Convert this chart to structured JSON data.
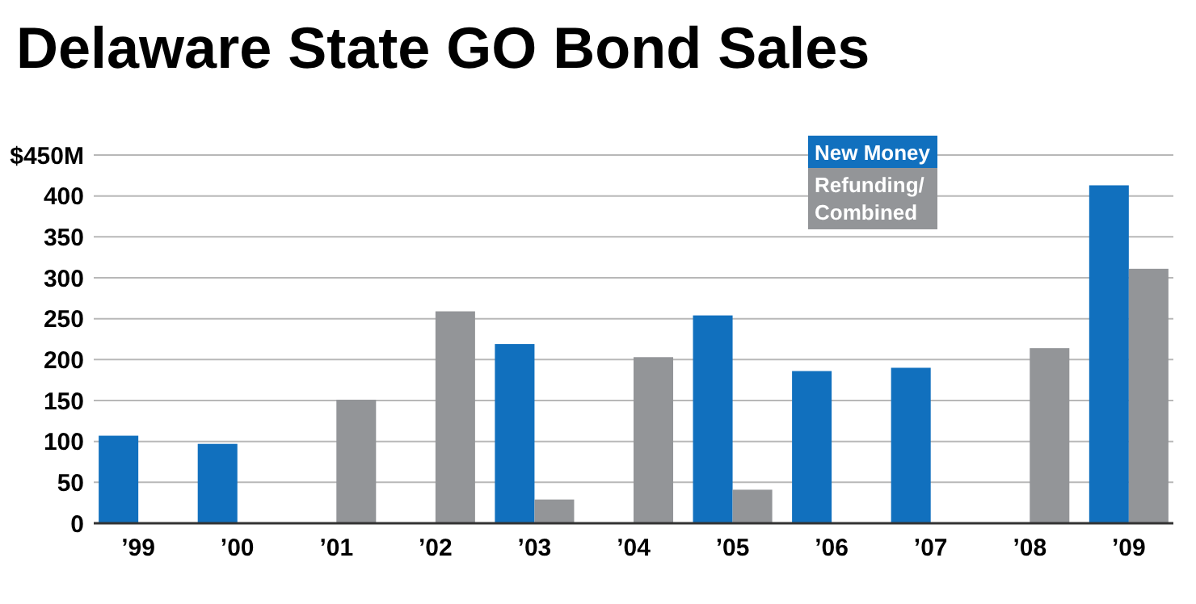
{
  "chart_data": {
    "type": "bar",
    "title": "Delaware State GO Bond Sales",
    "categories": [
      "’99",
      "’00",
      "’01",
      "’02",
      "’03",
      "’04",
      "’05",
      "’06",
      "’07",
      "’08",
      "’09"
    ],
    "series": [
      {
        "name": "New Money",
        "color": "#1170be",
        "values": [
          107,
          97,
          null,
          null,
          219,
          null,
          254,
          186,
          190,
          null,
          413
        ]
      },
      {
        "name": "Refunding/ Combined",
        "color": "#939598",
        "values": [
          null,
          null,
          151,
          259,
          29,
          203,
          41,
          null,
          null,
          214,
          311
        ]
      }
    ],
    "ylim": [
      0,
      450
    ],
    "yticks": [
      {
        "value": 0,
        "label": "0"
      },
      50,
      100,
      150,
      200,
      250,
      300,
      350,
      400,
      {
        "value": 450,
        "label": "$450M"
      }
    ],
    "grid": "y",
    "legend": "top right"
  }
}
